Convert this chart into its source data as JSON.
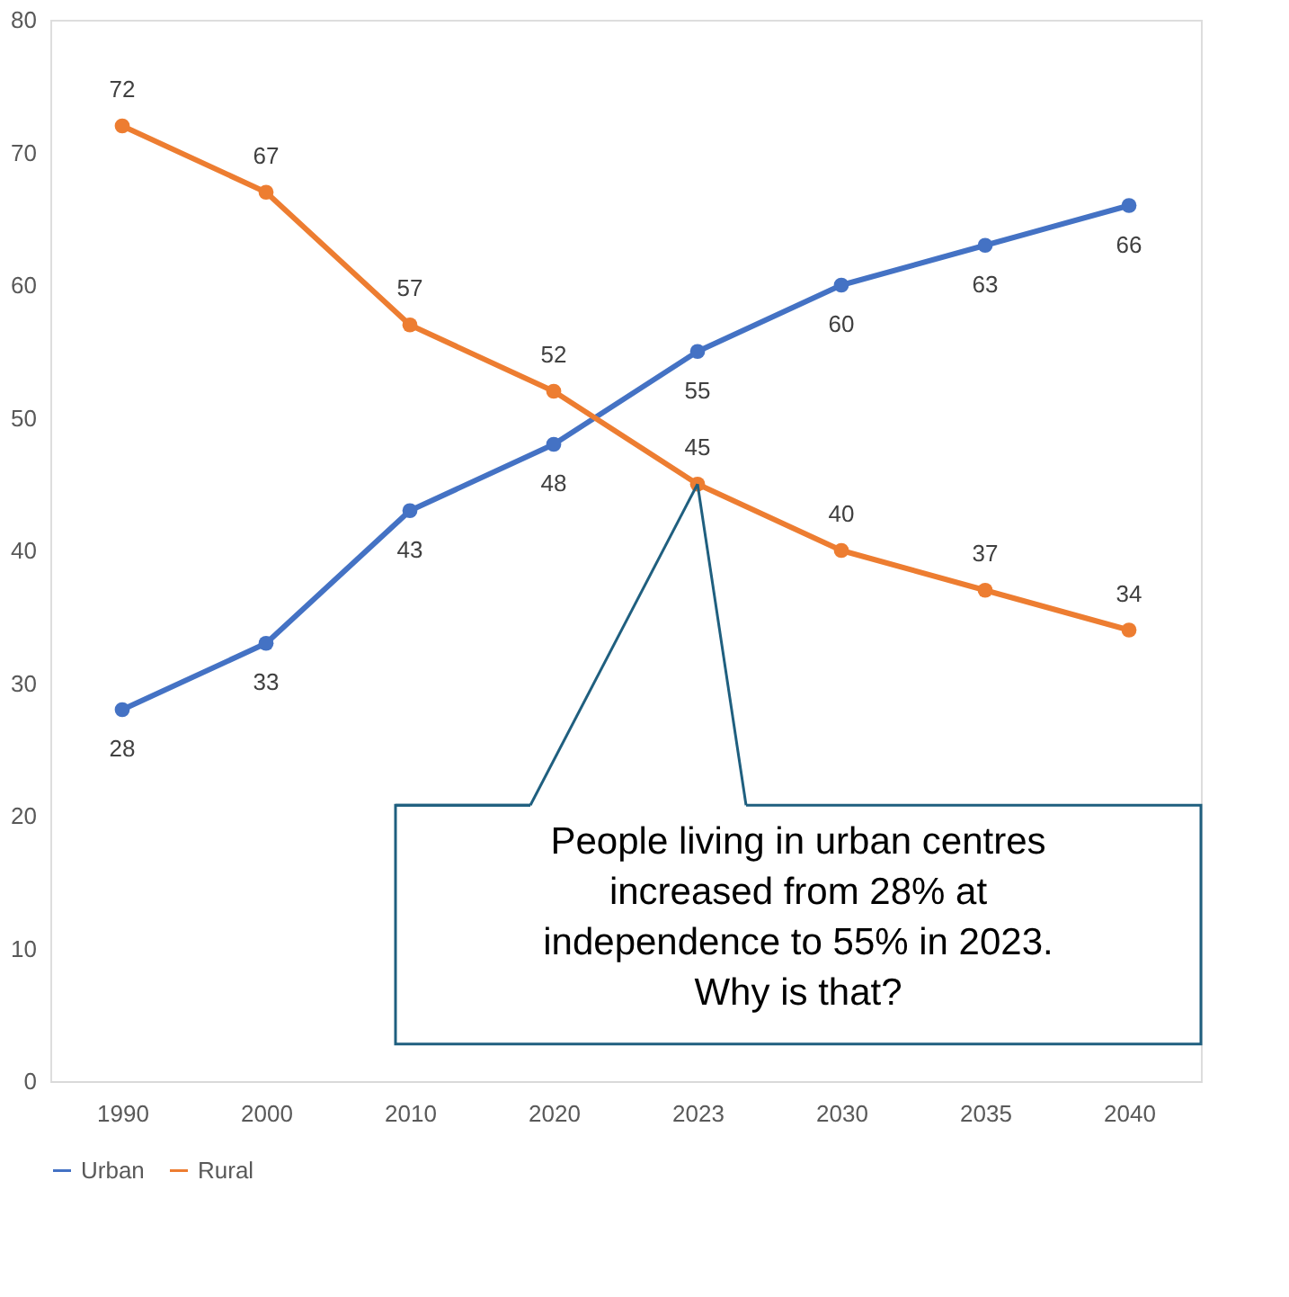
{
  "chart_data": {
    "type": "line",
    "categories": [
      "1990",
      "2000",
      "2010",
      "2020",
      "2023",
      "2030",
      "2035",
      "2040"
    ],
    "series": [
      {
        "name": "Urban",
        "color": "#4472c4",
        "values": [
          28,
          33,
          43,
          48,
          55,
          60,
          63,
          66
        ]
      },
      {
        "name": "Rural",
        "color": "#ed7d31",
        "values": [
          72,
          67,
          57,
          52,
          45,
          40,
          37,
          34
        ]
      }
    ],
    "ylim": [
      0,
      80
    ],
    "yticks": [
      0,
      10,
      20,
      30,
      40,
      50,
      60,
      70,
      80
    ],
    "grid": false,
    "legend": "bottom",
    "marker": "circle",
    "line_style": "solid",
    "data_labels": true,
    "annotations": [
      {
        "text": "People living in urban centres increased from 28% at independence to 55% in 2023. Why is that?",
        "x": "2023",
        "y": 45
      }
    ]
  }
}
